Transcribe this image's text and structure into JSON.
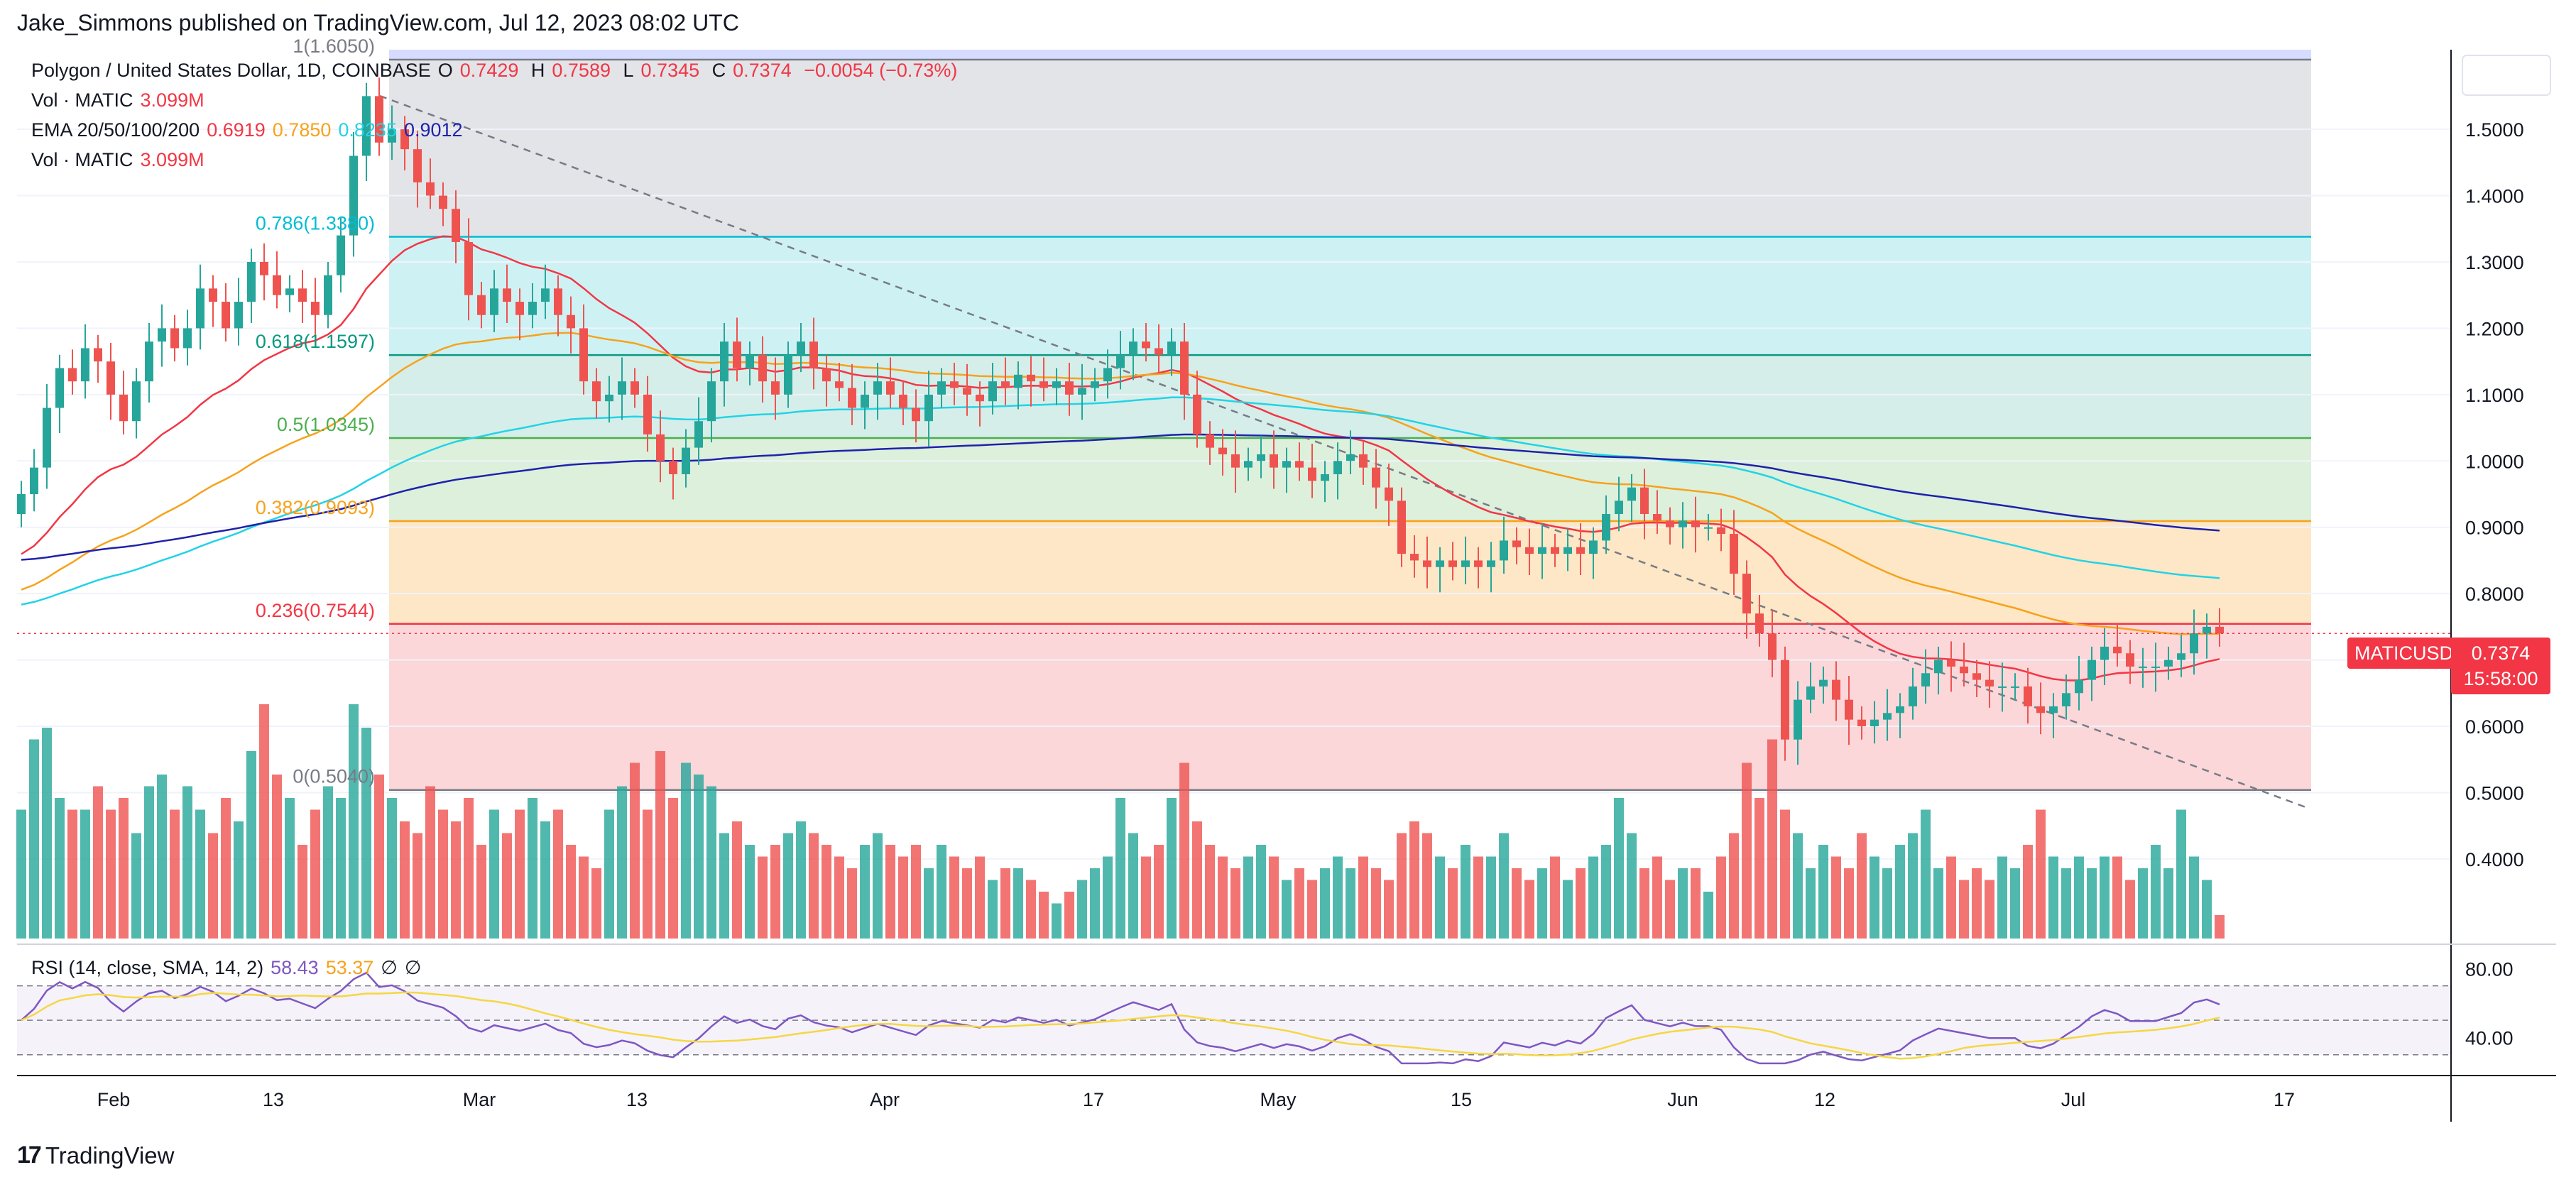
{
  "publisher": "Jake_Simmons published on TradingView.com, Jul 12, 2023 08:02 UTC",
  "footer": {
    "logo_mark": "17",
    "logo_text": "TradingView"
  },
  "legend": {
    "symbol": "Polygon / United States Dollar, 1D, COINBASE",
    "ohlc": {
      "o_label": "O",
      "o": "0.7429",
      "h_label": "H",
      "h": "0.7589",
      "l_label": "L",
      "l": "0.7345",
      "c_label": "C",
      "c": "0.7374",
      "change": "−0.0054 (−0.73%)"
    },
    "vol1_label": "Vol · MATIC",
    "vol1_value": "3.099M",
    "ema_label": "EMA 20/50/100/200",
    "ema20": "0.6919",
    "ema50": "0.7850",
    "ema100": "0.8235",
    "ema200": "0.9012",
    "vol2_label": "Vol · MATIC",
    "vol2_value": "3.099M",
    "rsi_label": "RSI (14, close, SMA, 14, 2)",
    "rsi_value": "58.43",
    "rsi_sma": "53.37",
    "rsi_extra1": "∅",
    "rsi_extra2": "∅"
  },
  "price_tag": {
    "symbol": "MATICUSD",
    "price": "0.7374",
    "time": "15:58:00"
  },
  "colors": {
    "up": "#26a69a",
    "down": "#ef5350",
    "ema20": "#f23645",
    "ema50": "#f7a21b",
    "ema100": "#22d3e6",
    "ema200": "#1e22aa",
    "rsi": "#7e57c2",
    "rsi_sma": "#f5d742"
  },
  "chart_data": {
    "type": "candlestick",
    "title": "Polygon / United States Dollar, 1D, COINBASE",
    "x_ticks": [
      "Feb",
      "13",
      "Mar",
      "13",
      "Apr",
      "17",
      "May",
      "15",
      "Jun",
      "12",
      "Jul",
      "17"
    ],
    "y_ticks": [
      "1.5000",
      "1.4000",
      "1.3000",
      "1.2000",
      "1.1000",
      "1.0000",
      "0.9000",
      "0.8000",
      "0.7000",
      "0.6000",
      "0.5000",
      "0.4000"
    ],
    "ylim": [
      0.28,
      1.62
    ],
    "fibonacci": [
      {
        "level": "1",
        "price": 1.605,
        "label": "1(1.6050)",
        "color": "#787b86"
      },
      {
        "level": "0.786",
        "price": 1.338,
        "label": "0.786(1.3380)",
        "color": "#00bcd4"
      },
      {
        "level": "0.618",
        "price": 1.1597,
        "label": "0.618(1.1597)",
        "color": "#089981"
      },
      {
        "level": "0.5",
        "price": 1.0345,
        "label": "0.5(1.0345)",
        "color": "#4caf50"
      },
      {
        "level": "0.382",
        "price": 0.9093,
        "label": "0.382(0.9093)",
        "color": "#f7a21b"
      },
      {
        "level": "0.236",
        "price": 0.7544,
        "label": "0.236(0.7544)",
        "color": "#f23645"
      },
      {
        "level": "0",
        "price": 0.504,
        "label": "0(0.5040)",
        "color": "#787b86"
      }
    ],
    "closes": [
      0.95,
      0.99,
      1.08,
      1.14,
      1.12,
      1.17,
      1.15,
      1.1,
      1.06,
      1.12,
      1.18,
      1.2,
      1.17,
      1.2,
      1.26,
      1.24,
      1.2,
      1.24,
      1.3,
      1.28,
      1.25,
      1.26,
      1.24,
      1.22,
      1.28,
      1.34,
      1.46,
      1.55,
      1.48,
      1.5,
      1.47,
      1.42,
      1.4,
      1.38,
      1.33,
      1.25,
      1.22,
      1.26,
      1.24,
      1.22,
      1.24,
      1.26,
      1.22,
      1.2,
      1.12,
      1.09,
      1.1,
      1.12,
      1.1,
      1.04,
      1.0,
      0.98,
      1.02,
      1.06,
      1.12,
      1.18,
      1.14,
      1.16,
      1.12,
      1.1,
      1.16,
      1.18,
      1.14,
      1.12,
      1.11,
      1.08,
      1.1,
      1.12,
      1.1,
      1.08,
      1.06,
      1.1,
      1.12,
      1.11,
      1.1,
      1.09,
      1.12,
      1.11,
      1.13,
      1.12,
      1.11,
      1.12,
      1.1,
      1.11,
      1.12,
      1.14,
      1.16,
      1.18,
      1.17,
      1.16,
      1.18,
      1.1,
      1.04,
      1.02,
      1.01,
      0.99,
      1.0,
      1.01,
      0.99,
      1.0,
      0.99,
      0.97,
      0.98,
      1.0,
      1.01,
      0.99,
      0.96,
      0.94,
      0.86,
      0.85,
      0.84,
      0.85,
      0.84,
      0.85,
      0.84,
      0.85,
      0.88,
      0.87,
      0.86,
      0.87,
      0.86,
      0.87,
      0.86,
      0.88,
      0.92,
      0.94,
      0.96,
      0.92,
      0.91,
      0.9,
      0.91,
      0.9,
      0.9,
      0.89,
      0.83,
      0.77,
      0.74,
      0.7,
      0.58,
      0.64,
      0.66,
      0.67,
      0.64,
      0.61,
      0.6,
      0.61,
      0.62,
      0.63,
      0.66,
      0.68,
      0.7,
      0.69,
      0.68,
      0.67,
      0.66,
      0.66,
      0.66,
      0.63,
      0.62,
      0.63,
      0.65,
      0.67,
      0.7,
      0.72,
      0.71,
      0.69,
      0.69,
      0.69,
      0.7,
      0.71,
      0.74,
      0.75,
      0.74
    ],
    "volumes": [
      0.55,
      0.85,
      0.9,
      0.6,
      0.55,
      0.55,
      0.65,
      0.55,
      0.6,
      0.45,
      0.65,
      0.7,
      0.55,
      0.65,
      0.55,
      0.45,
      0.6,
      0.5,
      0.8,
      1.0,
      0.7,
      0.6,
      0.4,
      0.55,
      0.65,
      0.6,
      1.0,
      0.9,
      0.7,
      0.6,
      0.5,
      0.45,
      0.65,
      0.55,
      0.5,
      0.6,
      0.4,
      0.55,
      0.45,
      0.55,
      0.6,
      0.5,
      0.55,
      0.4,
      0.35,
      0.3,
      0.55,
      0.65,
      0.75,
      0.55,
      0.8,
      0.6,
      0.75,
      0.7,
      0.65,
      0.45,
      0.5,
      0.4,
      0.35,
      0.4,
      0.45,
      0.5,
      0.45,
      0.4,
      0.35,
      0.3,
      0.4,
      0.45,
      0.4,
      0.35,
      0.4,
      0.3,
      0.4,
      0.35,
      0.3,
      0.35,
      0.25,
      0.3,
      0.3,
      0.25,
      0.2,
      0.15,
      0.2,
      0.25,
      0.3,
      0.35,
      0.6,
      0.45,
      0.35,
      0.4,
      0.6,
      0.75,
      0.5,
      0.4,
      0.35,
      0.3,
      0.35,
      0.4,
      0.35,
      0.25,
      0.3,
      0.25,
      0.3,
      0.35,
      0.3,
      0.35,
      0.3,
      0.25,
      0.45,
      0.5,
      0.45,
      0.35,
      0.3,
      0.4,
      0.35,
      0.35,
      0.45,
      0.3,
      0.25,
      0.3,
      0.35,
      0.25,
      0.3,
      0.35,
      0.4,
      0.6,
      0.45,
      0.3,
      0.35,
      0.25,
      0.3,
      0.3,
      0.2,
      0.35,
      0.45,
      0.75,
      0.6,
      0.85,
      0.55,
      0.45,
      0.3,
      0.4,
      0.35,
      0.3,
      0.45,
      0.35,
      0.3,
      0.4,
      0.45,
      0.55,
      0.3,
      0.35,
      0.25,
      0.3,
      0.25,
      0.35,
      0.3,
      0.4,
      0.55,
      0.35,
      0.3,
      0.35,
      0.3,
      0.35,
      0.35,
      0.25,
      0.3,
      0.4,
      0.3,
      0.55,
      0.35,
      0.25,
      0.1
    ],
    "rsi_ticks": [
      "80.00",
      "40.00"
    ],
    "rsi_ylim": [
      20,
      90
    ]
  }
}
